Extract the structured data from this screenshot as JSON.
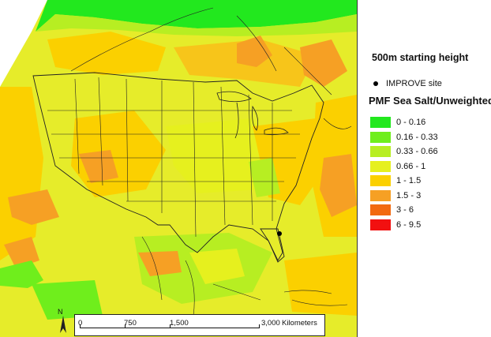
{
  "map": {
    "title": "500m starting height",
    "site_marker_label": "IMPROVE site",
    "legend_title": "PMF Sea Salt/Unweighted",
    "legend": [
      {
        "label": "0 - 0.16",
        "color": "#22e81e"
      },
      {
        "label": "0.16 - 0.33",
        "color": "#6fee1c"
      },
      {
        "label": "0.33 - 0.66",
        "color": "#b7ee22"
      },
      {
        "label": "0.66 - 1",
        "color": "#e6f01e"
      },
      {
        "label": "1 - 1.5",
        "color": "#fbd000"
      },
      {
        "label": "1.5 - 3",
        "color": "#f6a024"
      },
      {
        "label": "3 - 6",
        "color": "#f26a10"
      },
      {
        "label": "6 - 9.5",
        "color": "#f21010"
      }
    ],
    "north_label": "N",
    "scale": {
      "ticks": [
        "0",
        "750",
        "1,500",
        "3,000"
      ],
      "units": "Kilometers"
    }
  }
}
